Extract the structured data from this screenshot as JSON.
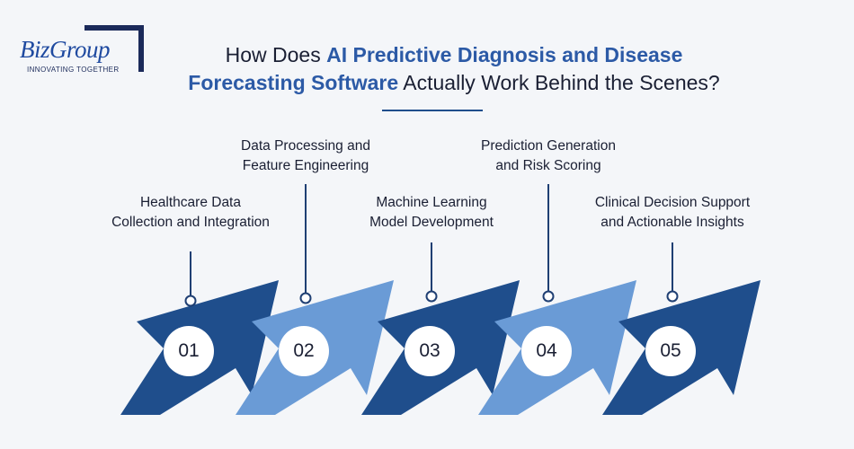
{
  "brand": {
    "name": "BizGroup",
    "tagline": "INNOVATING TOGETHER"
  },
  "title": {
    "line1_prefix": "How Does ",
    "line1_highlight": "AI Predictive Diagnosis and Disease",
    "line2_highlight": "Forecasting Software",
    "line2_suffix": " Actually Work Behind the Scenes?"
  },
  "colors": {
    "dark_arrow": "#1f4e8c",
    "light_arrow": "#6a9bd6",
    "highlight_text": "#2c5aa6",
    "connector": "#1f3f73"
  },
  "steps": [
    {
      "number": "01",
      "label_line1": "Healthcare Data",
      "label_line2": "Collection and Integration",
      "shade": "dark"
    },
    {
      "number": "02",
      "label_line1": "Data Processing and",
      "label_line2": "Feature Engineering",
      "shade": "light"
    },
    {
      "number": "03",
      "label_line1": "Machine Learning",
      "label_line2": "Model Development",
      "shade": "dark"
    },
    {
      "number": "04",
      "label_line1": "Prediction Generation",
      "label_line2": "and Risk Scoring",
      "shade": "light"
    },
    {
      "number": "05",
      "label_line1": "Clinical Decision Support",
      "label_line2": "and Actionable Insights",
      "shade": "dark"
    }
  ]
}
